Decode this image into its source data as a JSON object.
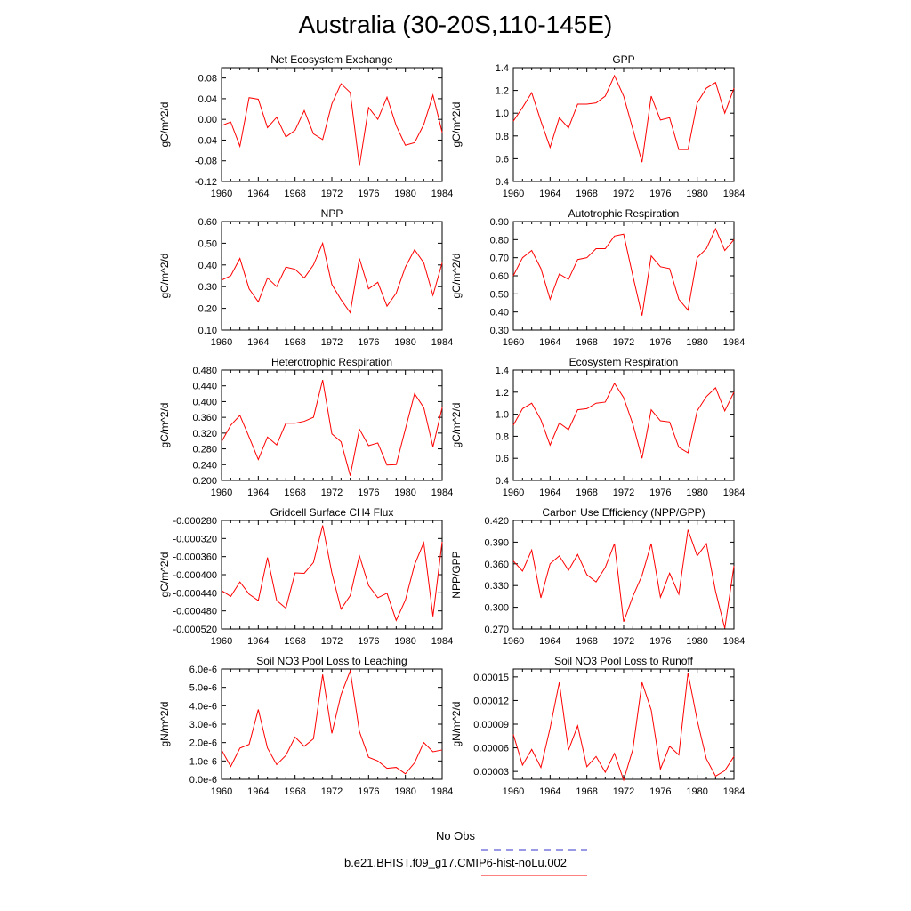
{
  "figure": {
    "title": "Australia (30-20S,110-145E)",
    "series_color": "#ff0000",
    "obs_color": "#3333cc"
  },
  "legend": {
    "obs_label": "No Obs",
    "case_label": "b.e21.BHIST.f09_g17.CMIP6-hist-noLu.002"
  },
  "chart_data": [
    {
      "type": "line",
      "title": "Net Ecosystem Exchange",
      "ylabel": "gC/m^2/d",
      "xlim": [
        1960,
        1984
      ],
      "ylim": [
        -0.12,
        0.1
      ],
      "xticks": [
        1960,
        1964,
        1968,
        1972,
        1976,
        1980,
        1984
      ],
      "yticks": [
        -0.12,
        -0.08,
        -0.04,
        0.0,
        0.04,
        0.08
      ],
      "ytick_labels": [
        "-0.12",
        "-0.08",
        "-0.04",
        "0.00",
        "0.04",
        "0.08"
      ],
      "series": [
        {
          "x": [
            1960,
            1961,
            1962,
            1963,
            1964,
            1965,
            1966,
            1967,
            1968,
            1969,
            1970,
            1971,
            1972,
            1973,
            1974,
            1975,
            1976,
            1977,
            1978,
            1979,
            1980,
            1981,
            1982,
            1983,
            1984
          ],
          "y": [
            -0.012,
            -0.005,
            -0.052,
            0.042,
            0.039,
            -0.016,
            0.004,
            -0.034,
            -0.021,
            0.017,
            -0.028,
            -0.039,
            0.03,
            0.069,
            0.052,
            -0.09,
            0.023,
            0.0,
            0.043,
            -0.012,
            -0.05,
            -0.045,
            -0.01,
            0.047,
            -0.025
          ]
        }
      ]
    },
    {
      "type": "line",
      "title": "GPP",
      "ylabel": "gC/m^2/d",
      "xlim": [
        1960,
        1984
      ],
      "ylim": [
        0.4,
        1.4
      ],
      "xticks": [
        1960,
        1964,
        1968,
        1972,
        1976,
        1980,
        1984
      ],
      "yticks": [
        0.4,
        0.6,
        0.8,
        1.0,
        1.2,
        1.4
      ],
      "ytick_labels": [
        "0.4",
        "0.6",
        "0.8",
        "1.0",
        "1.2",
        "1.4"
      ],
      "series": [
        {
          "x": [
            1960,
            1961,
            1962,
            1963,
            1964,
            1965,
            1966,
            1967,
            1968,
            1969,
            1970,
            1971,
            1972,
            1973,
            1974,
            1975,
            1976,
            1977,
            1978,
            1979,
            1980,
            1981,
            1982,
            1983,
            1984
          ],
          "y": [
            0.93,
            1.05,
            1.18,
            0.93,
            0.7,
            0.96,
            0.87,
            1.08,
            1.08,
            1.09,
            1.15,
            1.33,
            1.15,
            0.86,
            0.57,
            1.15,
            0.94,
            0.96,
            0.68,
            0.68,
            1.09,
            1.22,
            1.27,
            1.0,
            1.22
          ]
        }
      ]
    },
    {
      "type": "line",
      "title": "NPP",
      "ylabel": "gC/m^2/d",
      "xlim": [
        1960,
        1984
      ],
      "ylim": [
        0.1,
        0.6
      ],
      "xticks": [
        1960,
        1964,
        1968,
        1972,
        1976,
        1980,
        1984
      ],
      "yticks": [
        0.1,
        0.2,
        0.3,
        0.4,
        0.5,
        0.6
      ],
      "ytick_labels": [
        "0.10",
        "0.20",
        "0.30",
        "0.40",
        "0.50",
        "0.60"
      ],
      "series": [
        {
          "x": [
            1960,
            1961,
            1962,
            1963,
            1964,
            1965,
            1966,
            1967,
            1968,
            1969,
            1970,
            1971,
            1972,
            1973,
            1974,
            1975,
            1976,
            1977,
            1978,
            1979,
            1980,
            1981,
            1982,
            1983,
            1984
          ],
          "y": [
            0.33,
            0.35,
            0.43,
            0.29,
            0.23,
            0.34,
            0.3,
            0.39,
            0.38,
            0.34,
            0.4,
            0.5,
            0.31,
            0.24,
            0.18,
            0.43,
            0.29,
            0.32,
            0.21,
            0.27,
            0.39,
            0.47,
            0.41,
            0.26,
            0.41
          ]
        }
      ]
    },
    {
      "type": "line",
      "title": "Autotrophic Respiration",
      "ylabel": "gC/m^2/d",
      "xlim": [
        1960,
        1984
      ],
      "ylim": [
        0.3,
        0.9
      ],
      "xticks": [
        1960,
        1964,
        1968,
        1972,
        1976,
        1980,
        1984
      ],
      "yticks": [
        0.3,
        0.4,
        0.5,
        0.6,
        0.7,
        0.8,
        0.9
      ],
      "ytick_labels": [
        "0.30",
        "0.40",
        "0.50",
        "0.60",
        "0.70",
        "0.80",
        "0.90"
      ],
      "series": [
        {
          "x": [
            1960,
            1961,
            1962,
            1963,
            1964,
            1965,
            1966,
            1967,
            1968,
            1969,
            1970,
            1971,
            1972,
            1973,
            1974,
            1975,
            1976,
            1977,
            1978,
            1979,
            1980,
            1981,
            1982,
            1983,
            1984
          ],
          "y": [
            0.6,
            0.7,
            0.74,
            0.64,
            0.47,
            0.61,
            0.58,
            0.69,
            0.7,
            0.75,
            0.75,
            0.82,
            0.83,
            0.6,
            0.38,
            0.71,
            0.65,
            0.64,
            0.47,
            0.41,
            0.7,
            0.75,
            0.86,
            0.74,
            0.8
          ]
        }
      ]
    },
    {
      "type": "line",
      "title": "Heterotrophic Respiration",
      "ylabel": "gC/m^2/d",
      "xlim": [
        1960,
        1984
      ],
      "ylim": [
        0.2,
        0.48
      ],
      "xticks": [
        1960,
        1964,
        1968,
        1972,
        1976,
        1980,
        1984
      ],
      "yticks": [
        0.2,
        0.24,
        0.28,
        0.32,
        0.36,
        0.4,
        0.44,
        0.48
      ],
      "ytick_labels": [
        "0.200",
        "0.240",
        "0.280",
        "0.320",
        "0.360",
        "0.400",
        "0.440",
        "0.480"
      ],
      "series": [
        {
          "x": [
            1960,
            1961,
            1962,
            1963,
            1964,
            1965,
            1966,
            1967,
            1968,
            1969,
            1970,
            1971,
            1972,
            1973,
            1974,
            1975,
            1976,
            1977,
            1978,
            1979,
            1980,
            1981,
            1982,
            1983,
            1984
          ],
          "y": [
            0.298,
            0.34,
            0.365,
            0.31,
            0.253,
            0.31,
            0.29,
            0.345,
            0.345,
            0.35,
            0.36,
            0.455,
            0.318,
            0.298,
            0.212,
            0.33,
            0.288,
            0.295,
            0.239,
            0.24,
            0.33,
            0.42,
            0.385,
            0.285,
            0.385
          ]
        }
      ]
    },
    {
      "type": "line",
      "title": "Ecosystem Respiration",
      "ylabel": "gC/m^2/d",
      "xlim": [
        1960,
        1984
      ],
      "ylim": [
        0.4,
        1.4
      ],
      "xticks": [
        1960,
        1964,
        1968,
        1972,
        1976,
        1980,
        1984
      ],
      "yticks": [
        0.4,
        0.6,
        0.8,
        1.0,
        1.2,
        1.4
      ],
      "ytick_labels": [
        "0.4",
        "0.6",
        "0.8",
        "1.0",
        "1.2",
        "1.4"
      ],
      "series": [
        {
          "x": [
            1960,
            1961,
            1962,
            1963,
            1964,
            1965,
            1966,
            1967,
            1968,
            1969,
            1970,
            1971,
            1972,
            1973,
            1974,
            1975,
            1976,
            1977,
            1978,
            1979,
            1980,
            1981,
            1982,
            1983,
            1984
          ],
          "y": [
            0.9,
            1.05,
            1.1,
            0.95,
            0.72,
            0.92,
            0.86,
            1.04,
            1.05,
            1.1,
            1.11,
            1.28,
            1.15,
            0.91,
            0.6,
            1.04,
            0.94,
            0.93,
            0.7,
            0.65,
            1.03,
            1.16,
            1.24,
            1.03,
            1.2
          ]
        }
      ]
    },
    {
      "type": "line",
      "title": "Gridcell Surface CH4 Flux",
      "ylabel": "gC/m^2/d",
      "xlim": [
        1960,
        1984
      ],
      "ylim": [
        -0.00052,
        -0.00028
      ],
      "xticks": [
        1960,
        1964,
        1968,
        1972,
        1976,
        1980,
        1984
      ],
      "yticks": [
        -0.00052,
        -0.00048,
        -0.00044,
        -0.0004,
        -0.00036,
        -0.00032,
        -0.00028
      ],
      "ytick_labels": [
        "-0.000520",
        "-0.000480",
        "-0.000440",
        "-0.000400",
        "-0.000360",
        "-0.000320",
        "-0.000280"
      ],
      "series": [
        {
          "x": [
            1960,
            1961,
            1962,
            1963,
            1964,
            1965,
            1966,
            1967,
            1968,
            1969,
            1970,
            1971,
            1972,
            1973,
            1974,
            1975,
            1976,
            1977,
            1978,
            1979,
            1980,
            1981,
            1982,
            1983,
            1984
          ],
          "y": [
            -0.000435,
            -0.000448,
            -0.000416,
            -0.000443,
            -0.000457,
            -0.000362,
            -0.000457,
            -0.000474,
            -0.000396,
            -0.000397,
            -0.000373,
            -0.000291,
            -0.000396,
            -0.000476,
            -0.000446,
            -0.000358,
            -0.000424,
            -0.000451,
            -0.000441,
            -0.000501,
            -0.000456,
            -0.000378,
            -0.000329,
            -0.000492,
            -0.000327
          ]
        }
      ]
    },
    {
      "type": "line",
      "title": "Carbon Use Efficiency (NPP/GPP)",
      "ylabel": "NPP/GPP",
      "xlim": [
        1960,
        1984
      ],
      "ylim": [
        0.27,
        0.42
      ],
      "xticks": [
        1960,
        1964,
        1968,
        1972,
        1976,
        1980,
        1984
      ],
      "yticks": [
        0.27,
        0.3,
        0.33,
        0.36,
        0.39,
        0.42
      ],
      "ytick_labels": [
        "0.270",
        "0.300",
        "0.330",
        "0.360",
        "0.390",
        "0.420"
      ],
      "series": [
        {
          "x": [
            1960,
            1961,
            1962,
            1963,
            1964,
            1965,
            1966,
            1967,
            1968,
            1969,
            1970,
            1971,
            1972,
            1973,
            1974,
            1975,
            1976,
            1977,
            1978,
            1979,
            1980,
            1981,
            1982,
            1983,
            1984
          ],
          "y": [
            0.364,
            0.35,
            0.379,
            0.313,
            0.36,
            0.371,
            0.351,
            0.373,
            0.345,
            0.335,
            0.355,
            0.388,
            0.28,
            0.315,
            0.344,
            0.388,
            0.314,
            0.347,
            0.318,
            0.407,
            0.371,
            0.388,
            0.322,
            0.271,
            0.357
          ]
        }
      ]
    },
    {
      "type": "line",
      "title": "Soil NO3 Pool Loss to Leaching",
      "ylabel": "gN/m^2/d",
      "xlim": [
        1960,
        1984
      ],
      "ylim": [
        0,
        6e-06
      ],
      "xticks": [
        1960,
        1964,
        1968,
        1972,
        1976,
        1980,
        1984
      ],
      "yticks": [
        0,
        1e-06,
        2e-06,
        3e-06,
        4e-06,
        5e-06,
        6e-06
      ],
      "ytick_labels": [
        "0.0e-6",
        "1.0e-6",
        "2.0e-6",
        "3.0e-6",
        "4.0e-6",
        "5.0e-6",
        "6.0e-6"
      ],
      "series": [
        {
          "x": [
            1960,
            1961,
            1962,
            1963,
            1964,
            1965,
            1966,
            1967,
            1968,
            1969,
            1970,
            1971,
            1972,
            1973,
            1974,
            1975,
            1976,
            1977,
            1978,
            1979,
            1980,
            1981,
            1982,
            1983,
            1984
          ],
          "y": [
            1.6e-06,
            7e-07,
            1.7e-06,
            1.9e-06,
            3.8e-06,
            1.7e-06,
            8e-07,
            1.3e-06,
            2.3e-06,
            1.8e-06,
            2.2e-06,
            5.7e-06,
            2.5e-06,
            4.6e-06,
            5.9e-06,
            2.6e-06,
            1.2e-06,
            1e-06,
            6e-07,
            6.5e-07,
            3e-07,
            9e-07,
            2e-06,
            1.5e-06,
            1.6e-06
          ]
        }
      ]
    },
    {
      "type": "line",
      "title": "Soil NO3 Pool Loss to Runoff",
      "ylabel": "gN/m^2/d",
      "xlim": [
        1960,
        1984
      ],
      "ylim": [
        2e-05,
        0.00016
      ],
      "xticks": [
        1960,
        1964,
        1968,
        1972,
        1976,
        1980,
        1984
      ],
      "yticks": [
        3e-05,
        6e-05,
        9e-05,
        0.00012,
        0.00015
      ],
      "ytick_labels": [
        "0.00003",
        "0.00006",
        "0.00009",
        "0.00012",
        "0.00015"
      ],
      "series": [
        {
          "x": [
            1960,
            1961,
            1962,
            1963,
            1964,
            1965,
            1966,
            1967,
            1968,
            1969,
            1970,
            1971,
            1972,
            1973,
            1974,
            1975,
            1976,
            1977,
            1978,
            1979,
            1980,
            1981,
            1982,
            1983,
            1984
          ],
          "y": [
            7.7e-05,
            3.8e-05,
            5.8e-05,
            3.5e-05,
            8.5e-05,
            0.000143,
            5.7e-05,
            8.8e-05,
            3.6e-05,
            4.9e-05,
            2.9e-05,
            5.3e-05,
            1.9e-05,
            5.8e-05,
            0.000143,
            0.000108,
            3.3e-05,
            6.2e-05,
            5.1e-05,
            0.000155,
            9.5e-05,
            4.6e-05,
            2.4e-05,
            3.1e-05,
            4.9e-05
          ]
        }
      ]
    }
  ]
}
